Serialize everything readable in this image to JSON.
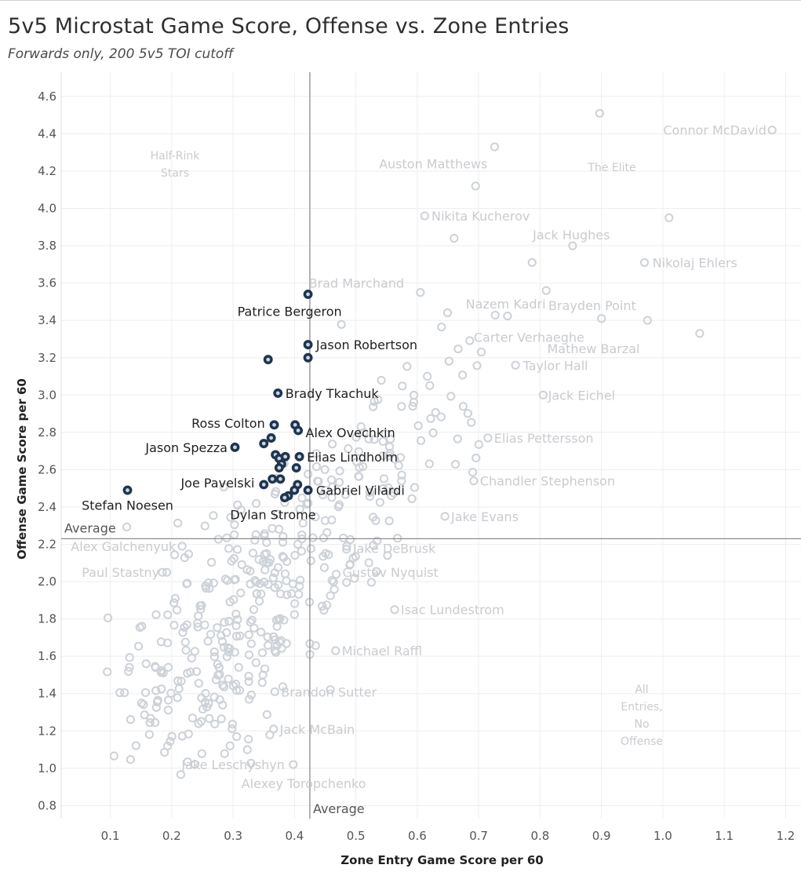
{
  "title": "5v5 Microstat Game Score, Offense vs. Zone Entries",
  "subtitle": "Forwards only, 200 5v5 TOI cutoff",
  "chart_data": {
    "type": "scatter",
    "xlabel": "Zone Entry Game Score per 60",
    "ylabel": "Offense Game Score per 60",
    "xlim": [
      0.02,
      1.225
    ],
    "ylim": [
      0.73,
      4.73
    ],
    "x_ticks": [
      "0.1",
      "0.2",
      "0.3",
      "0.4",
      "0.5",
      "0.6",
      "0.7",
      "0.8",
      "0.9",
      "1.0",
      "1.1",
      "1.2"
    ],
    "y_ticks": [
      "0.8",
      "1.0",
      "1.2",
      "1.4",
      "1.6",
      "1.8",
      "2.0",
      "2.2",
      "2.4",
      "2.6",
      "2.8",
      "3.0",
      "3.2",
      "3.4",
      "3.6",
      "3.8",
      "4.0",
      "4.2",
      "4.4",
      "4.6"
    ],
    "grid": true,
    "reference_lines": [
      {
        "axis": "y",
        "value": 2.23,
        "label": "Average"
      },
      {
        "axis": "x",
        "value": 0.425,
        "label": "Average"
      }
    ],
    "quadrant_labels": [
      {
        "text": "Half-Rink Stars",
        "x": 0.23,
        "y": 4.23
      },
      {
        "text": "The Elite",
        "x": 0.89,
        "y": 4.21
      },
      {
        "text": "All Entries, No Offense",
        "x": 1.09,
        "y": 1.28
      }
    ],
    "highlighted_points": [
      {
        "name": "Patrice Bergeron",
        "x": 0.422,
        "y": 3.54
      },
      {
        "name": "Jason Robertson",
        "x": 0.422,
        "y": 3.27
      },
      {
        "name": "",
        "x": 0.357,
        "y": 3.19
      },
      {
        "name": "",
        "x": 0.422,
        "y": 3.2
      },
      {
        "name": "Brady Tkachuk",
        "x": 0.373,
        "y": 3.01
      },
      {
        "name": "Ross Colton",
        "x": 0.367,
        "y": 2.84
      },
      {
        "name": "",
        "x": 0.401,
        "y": 2.84
      },
      {
        "name": "Alex Ovechkin",
        "x": 0.406,
        "y": 2.81
      },
      {
        "name": "",
        "x": 0.362,
        "y": 2.77
      },
      {
        "name": "",
        "x": 0.35,
        "y": 2.74
      },
      {
        "name": "Jason Spezza",
        "x": 0.303,
        "y": 2.72
      },
      {
        "name": "",
        "x": 0.369,
        "y": 2.68
      },
      {
        "name": "",
        "x": 0.375,
        "y": 2.66
      },
      {
        "name": "",
        "x": 0.385,
        "y": 2.67
      },
      {
        "name": "Elias Lindholm",
        "x": 0.408,
        "y": 2.67
      },
      {
        "name": "",
        "x": 0.379,
        "y": 2.63
      },
      {
        "name": "",
        "x": 0.375,
        "y": 2.61
      },
      {
        "name": "",
        "x": 0.403,
        "y": 2.61
      },
      {
        "name": "Stefan Noesen",
        "x": 0.128,
        "y": 2.49
      },
      {
        "name": "",
        "x": 0.364,
        "y": 2.55
      },
      {
        "name": "",
        "x": 0.377,
        "y": 2.55
      },
      {
        "name": "Joe Pavelski",
        "x": 0.35,
        "y": 2.52
      },
      {
        "name": "",
        "x": 0.405,
        "y": 2.52
      },
      {
        "name": "Gabriel Vilardi",
        "x": 0.422,
        "y": 2.49
      },
      {
        "name": "",
        "x": 0.4,
        "y": 2.49
      },
      {
        "name": "",
        "x": 0.39,
        "y": 2.46
      },
      {
        "name": "Dylan Strome",
        "x": 0.384,
        "y": 2.45
      }
    ],
    "labeled_background_points": [
      {
        "name": "Connor McDavid",
        "x": 1.178,
        "y": 4.42
      },
      {
        "name": "",
        "x": 0.897,
        "y": 4.51
      },
      {
        "name": "Auston Matthews",
        "x": 0.726,
        "y": 4.33
      },
      {
        "name": "",
        "x": 0.695,
        "y": 4.12
      },
      {
        "name": "Nikita Kucherov",
        "x": 0.612,
        "y": 3.96
      },
      {
        "name": "Jack Hughes",
        "x": 1.01,
        "y": 3.95
      },
      {
        "name": "",
        "x": 0.66,
        "y": 3.84
      },
      {
        "name": "",
        "x": 0.853,
        "y": 3.8
      },
      {
        "name": "Nikolaj Ehlers",
        "x": 0.97,
        "y": 3.71
      },
      {
        "name": "",
        "x": 0.787,
        "y": 3.71
      },
      {
        "name": "Brad Marchand",
        "x": 0.605,
        "y": 3.55
      },
      {
        "name": "Nazem Kadri",
        "x": 0.81,
        "y": 3.56
      },
      {
        "name": "Brayden Point",
        "x": 0.975,
        "y": 3.4
      },
      {
        "name": "Carter Verhaeghe",
        "x": 0.9,
        "y": 3.41
      },
      {
        "name": "Mathew Barzal",
        "x": 1.06,
        "y": 3.33
      },
      {
        "name": "Taylor Hall",
        "x": 0.76,
        "y": 3.16
      },
      {
        "name": "Jack Eichel",
        "x": 0.805,
        "y": 3.0
      },
      {
        "name": "Elias Pettersson",
        "x": 0.715,
        "y": 2.77
      },
      {
        "name": "Chandler Stephenson",
        "x": 0.692,
        "y": 2.54
      },
      {
        "name": "Jake Evans",
        "x": 0.645,
        "y": 2.35
      },
      {
        "name": "Jake DeBrusk",
        "x": 0.485,
        "y": 2.19
      },
      {
        "name": "Alex Galchenyuk",
        "x": 0.217,
        "y": 2.19
      },
      {
        "name": "Gustav Nyquist",
        "x": 0.468,
        "y": 2.04
      },
      {
        "name": "Paul Stastny",
        "x": 0.192,
        "y": 2.05
      },
      {
        "name": "Isac Lundestrom",
        "x": 0.563,
        "y": 1.85
      },
      {
        "name": "Michael Raffl",
        "x": 0.467,
        "y": 1.63
      },
      {
        "name": "Brandon Sutter",
        "x": 0.368,
        "y": 1.41
      },
      {
        "name": "Jack McBain",
        "x": 0.366,
        "y": 1.21
      },
      {
        "name": "Jake Leschyshyn",
        "x": 0.295,
        "y": 1.12
      },
      {
        "name": "Alexey Toropchenko",
        "x": 0.398,
        "y": 1.02
      }
    ],
    "background_point_count": 420,
    "colors": {
      "highlight": "#1f3550",
      "highlight_stroke": "#cfd5dd",
      "background": "#cdd2d8",
      "refline": "#8c8c8c",
      "grid": "#eeeeee"
    }
  }
}
